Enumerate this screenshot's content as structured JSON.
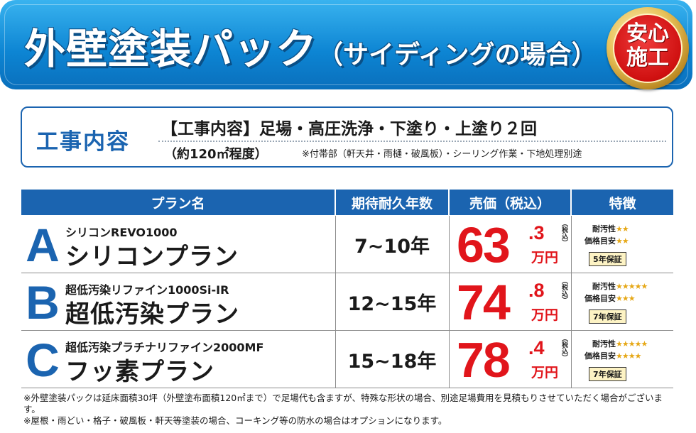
{
  "header": {
    "title": "外壁塗装パック",
    "subtitle": "（サイディングの場合）",
    "seal_line1": "安心",
    "seal_line2": "施工"
  },
  "work": {
    "label": "工事内容",
    "line1": "【工事内容】足場・高圧洗浄・下塗り・上塗り２回",
    "area": "（約120㎡程度）",
    "note": "※付帯部（軒天井・雨樋・破風板）・シーリング作業・下地処理別途"
  },
  "table": {
    "headers": [
      "プラン名",
      "期待耐久年数",
      "売価（税込）",
      "特徴"
    ],
    "price_unit": "万円",
    "tax_label": "（税込）",
    "feature_labels": [
      "耐汚性",
      "価格目安"
    ],
    "rows": [
      {
        "letter": "A",
        "product": "シリコンREVO1000",
        "name": "シリコンプラン",
        "years": "7~10年",
        "price_int": "63",
        "price_dec": ".3",
        "stain": "★★",
        "cost": "★★",
        "warranty": "5年保証"
      },
      {
        "letter": "B",
        "product": "超低汚染リファイン1000Si-IR",
        "name": "超低汚染プラン",
        "years": "12~15年",
        "price_int": "74",
        "price_dec": ".8",
        "stain": "★★★★★",
        "cost": "★★★",
        "warranty": "7年保証"
      },
      {
        "letter": "C",
        "product": "超低汚染プラチナリファイン2000MF",
        "name": "フッ素プラン",
        "years": "15~18年",
        "price_int": "78",
        "price_dec": ".4",
        "stain": "★★★★★",
        "cost": "★★★★",
        "warranty": "7年保証"
      }
    ]
  },
  "notes": [
    "※外壁塗装パックは延床面積30坪（外壁塗布面積120㎡まで）で足場代も含ますが、特殊な形状の場合、別途足場費用を見積もりさせていただく場合がございます。",
    "※屋根・雨どい・格子・破風板・軒天等塗装の場合、コーキング等の防水の場合はオプションになります。"
  ],
  "colors": {
    "brand_blue": "#1b64b0",
    "price_red": "#e1151b",
    "star_gold": "#e6a817"
  }
}
